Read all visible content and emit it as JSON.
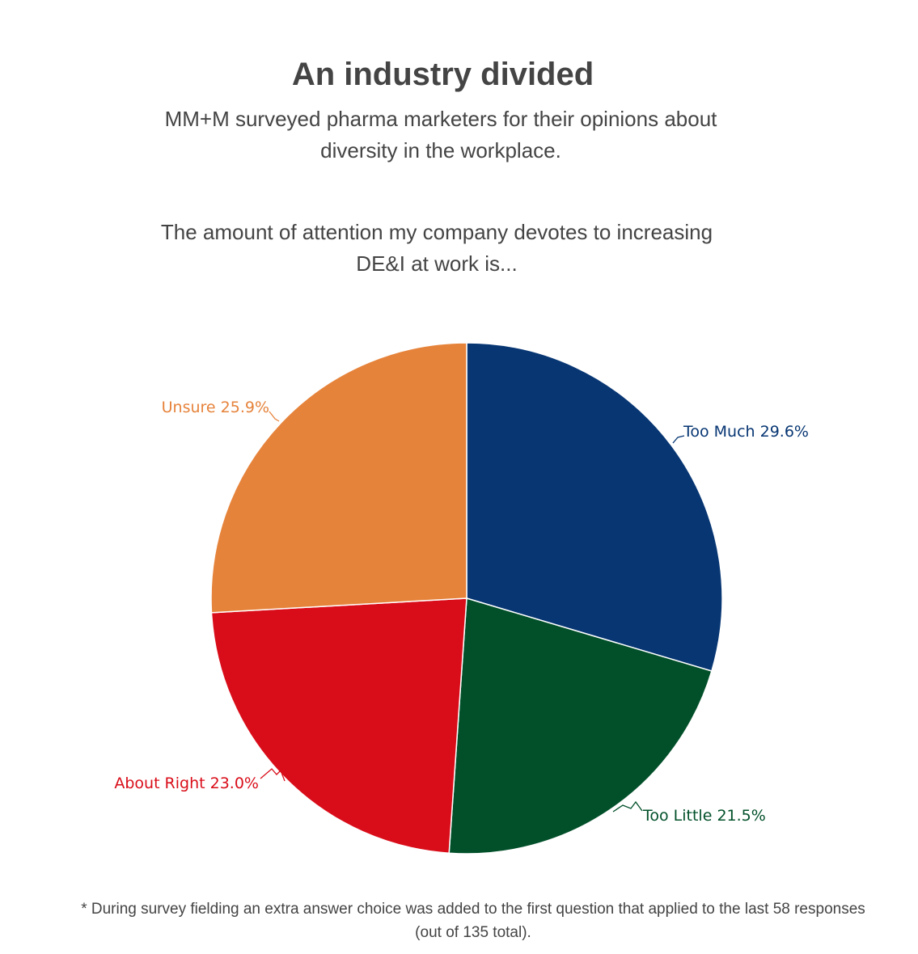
{
  "header": {
    "title": "An industry divided",
    "subtitle": "MM+M surveyed pharma marketers for their opinions about diversity in the workplace."
  },
  "chart_data": {
    "type": "pie",
    "title": "The amount of attention my company devotes to increasing DE&I at work is...",
    "slices": [
      {
        "label": "Too Much",
        "value": 29.6,
        "value_label": "29.6%",
        "color": "#073673"
      },
      {
        "label": "Too Little",
        "value": 21.5,
        "value_label": "21.5%",
        "color": "#02502a"
      },
      {
        "label": "About Right",
        "value": 23.0,
        "value_label": "23.0%",
        "color": "#d90d19"
      },
      {
        "label": "Unsure",
        "value": 25.9,
        "value_label": "25.9%",
        "color": "#e6833b"
      }
    ],
    "start_angle_deg": 0,
    "direction": "clockwise",
    "labels": "outside-with-connectors"
  },
  "footnote": "* During survey fielding an extra answer choice was added to the first question that applied to the last 58 responses (out of 135 total)."
}
